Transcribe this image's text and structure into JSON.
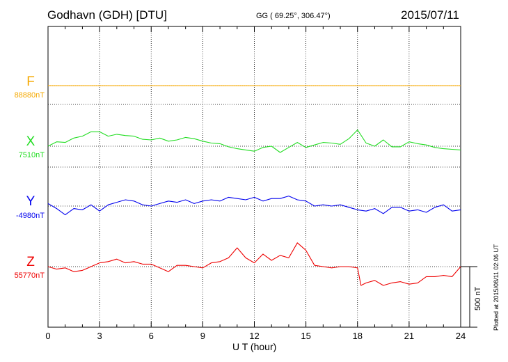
{
  "header": {
    "station": "Godhavn (GDH)  [DTU]",
    "coords": "GG ( 69.25°, 306.47°)",
    "date": "2015/07/11"
  },
  "footer": {
    "plotted": "Plotted at 2015/08/11 02:06 UT"
  },
  "colors": {
    "F": "#f5a800",
    "X": "#22dd22",
    "Y": "#0000ee",
    "Z": "#ee0000"
  },
  "chart_data": {
    "type": "line",
    "xlabel": "U T (hour)",
    "xlim": [
      0,
      24
    ],
    "xticks": [
      "0",
      "3",
      "6",
      "9",
      "12",
      "15",
      "18",
      "21",
      "24"
    ],
    "scale_bar": "500 nT",
    "grid": true,
    "series": [
      {
        "name": "F",
        "baseline": "88880nT",
        "x": [
          0,
          24
        ],
        "y": [
          88880,
          88880
        ]
      },
      {
        "name": "X",
        "baseline": "7510nT",
        "x": [
          0,
          0.5,
          1,
          1.5,
          2,
          2.5,
          3,
          3.5,
          4,
          4.5,
          5,
          5.5,
          6,
          6.5,
          7,
          7.5,
          8,
          8.5,
          9,
          9.5,
          10,
          10.5,
          11,
          11.5,
          12,
          12.5,
          13,
          13.5,
          14,
          14.5,
          15,
          15.5,
          16,
          16.5,
          17,
          17.5,
          18,
          18.5,
          19,
          19.5,
          20,
          20.5,
          21,
          21.5,
          22,
          22.5,
          23,
          23.5,
          24
        ],
        "y": [
          7510,
          7545,
          7540,
          7575,
          7590,
          7625,
          7625,
          7590,
          7605,
          7595,
          7590,
          7565,
          7560,
          7575,
          7550,
          7560,
          7580,
          7570,
          7550,
          7535,
          7530,
          7505,
          7490,
          7480,
          7470,
          7500,
          7510,
          7460,
          7500,
          7540,
          7500,
          7520,
          7540,
          7535,
          7525,
          7570,
          7640,
          7535,
          7510,
          7560,
          7505,
          7505,
          7545,
          7530,
          7520,
          7500,
          7490,
          7485,
          7480
        ]
      },
      {
        "name": "Y",
        "baseline": "-4980nT",
        "x": [
          0,
          0.5,
          1,
          1.5,
          2,
          2.5,
          3,
          3.5,
          4,
          4.5,
          5,
          5.5,
          6,
          6.5,
          7,
          7.5,
          8,
          8.5,
          9,
          9.5,
          10,
          10.5,
          11,
          11.5,
          12,
          12.5,
          13,
          13.5,
          14,
          14.5,
          15,
          15.5,
          16,
          16.5,
          17,
          17.5,
          18,
          18.5,
          19,
          19.5,
          20,
          20.5,
          21,
          21.5,
          22,
          22.5,
          23,
          23.5,
          24
        ],
        "y": [
          -4960,
          -5000,
          -5050,
          -5000,
          -5010,
          -4970,
          -5020,
          -4970,
          -4950,
          -4930,
          -4940,
          -4970,
          -4980,
          -4960,
          -4940,
          -4950,
          -4930,
          -4960,
          -4940,
          -4930,
          -4940,
          -4910,
          -4920,
          -4930,
          -4910,
          -4940,
          -4920,
          -4920,
          -4900,
          -4930,
          -4940,
          -4980,
          -4970,
          -4980,
          -4970,
          -4990,
          -5010,
          -5020,
          -5000,
          -5040,
          -4990,
          -4990,
          -5020,
          -5010,
          -5030,
          -4990,
          -4970,
          -5020,
          -5010
        ]
      },
      {
        "name": "Z",
        "baseline": "55770nT",
        "x": [
          0,
          0.5,
          1,
          1.5,
          2,
          2.5,
          3,
          3.5,
          4,
          4.5,
          5,
          5.5,
          6,
          6.5,
          7,
          7.5,
          8,
          8.5,
          9,
          9.5,
          10,
          10.5,
          11,
          11.5,
          12,
          12.5,
          13,
          13.5,
          14,
          14.5,
          15,
          15.5,
          16,
          16.5,
          17,
          17.5,
          18,
          18.2,
          18.5,
          19,
          19.5,
          20,
          20.5,
          21,
          21.5,
          22,
          22.5,
          23,
          23.5,
          24
        ],
        "y": [
          55770,
          55750,
          55760,
          55730,
          55740,
          55770,
          55800,
          55810,
          55830,
          55800,
          55810,
          55790,
          55790,
          55760,
          55730,
          55780,
          55780,
          55770,
          55760,
          55800,
          55810,
          55840,
          55920,
          55840,
          55800,
          55870,
          55820,
          55860,
          55840,
          55960,
          55900,
          55780,
          55770,
          55760,
          55770,
          55770,
          55760,
          55620,
          55640,
          55660,
          55620,
          55640,
          55650,
          55630,
          55640,
          55690,
          55690,
          55700,
          55690,
          55770
        ]
      }
    ]
  }
}
